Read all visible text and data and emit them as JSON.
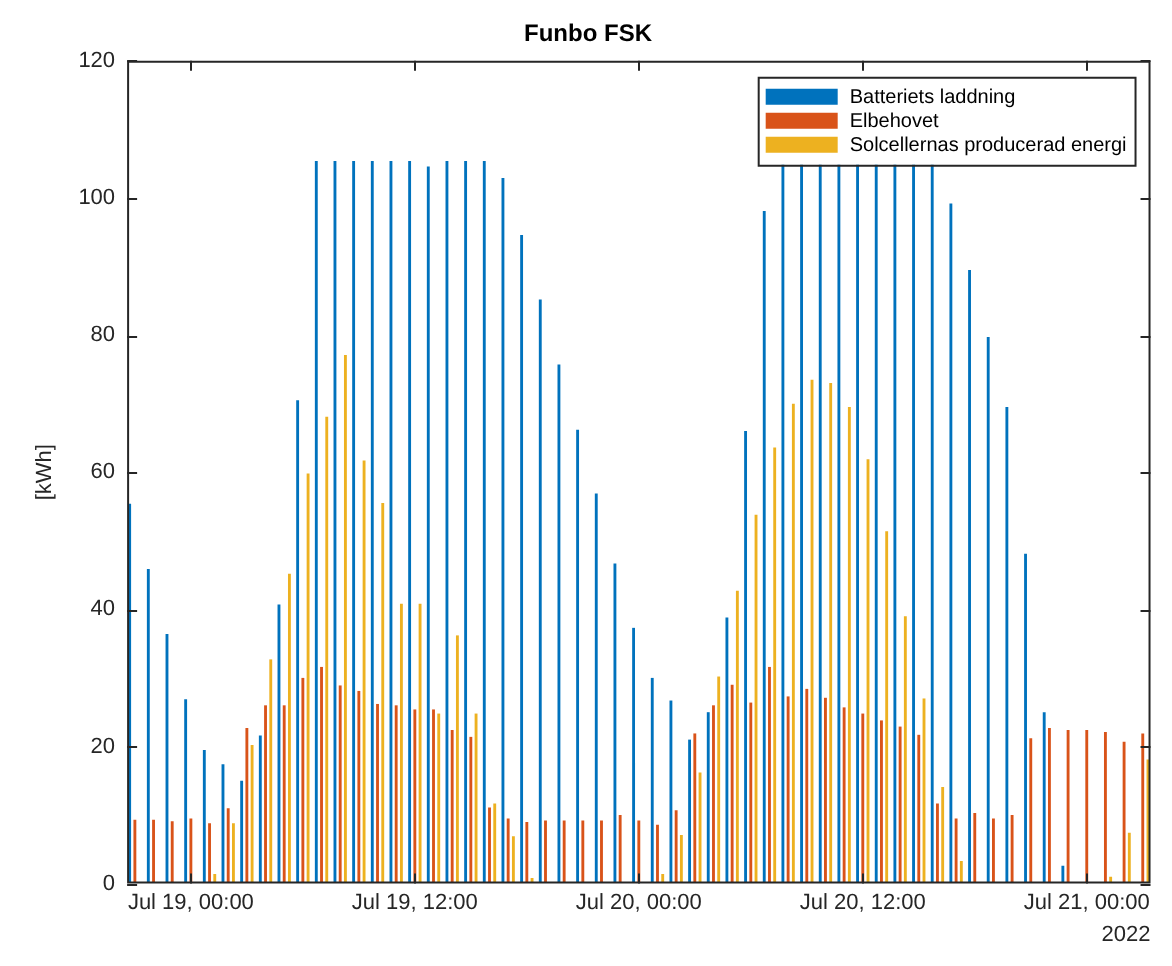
{
  "chart_data": {
    "type": "bar",
    "title": "Funbo FSK",
    "ylabel": "[kWh]",
    "annotations": [
      "2022"
    ],
    "x": [
      "2022-07-18T21:00",
      "2022-07-18T22:00",
      "2022-07-18T23:00",
      "2022-07-19T00:00",
      "2022-07-19T01:00",
      "2022-07-19T02:00",
      "2022-07-19T03:00",
      "2022-07-19T04:00",
      "2022-07-19T05:00",
      "2022-07-19T06:00",
      "2022-07-19T07:00",
      "2022-07-19T08:00",
      "2022-07-19T09:00",
      "2022-07-19T10:00",
      "2022-07-19T11:00",
      "2022-07-19T12:00",
      "2022-07-19T13:00",
      "2022-07-19T14:00",
      "2022-07-19T15:00",
      "2022-07-19T16:00",
      "2022-07-19T17:00",
      "2022-07-19T18:00",
      "2022-07-19T19:00",
      "2022-07-19T20:00",
      "2022-07-19T21:00",
      "2022-07-19T22:00",
      "2022-07-19T23:00",
      "2022-07-20T00:00",
      "2022-07-20T01:00",
      "2022-07-20T02:00",
      "2022-07-20T03:00",
      "2022-07-20T04:00",
      "2022-07-20T05:00",
      "2022-07-20T06:00",
      "2022-07-20T07:00",
      "2022-07-20T08:00",
      "2022-07-20T09:00",
      "2022-07-20T10:00",
      "2022-07-20T11:00",
      "2022-07-20T12:00",
      "2022-07-20T13:00",
      "2022-07-20T14:00",
      "2022-07-20T15:00",
      "2022-07-20T16:00",
      "2022-07-20T17:00",
      "2022-07-20T18:00",
      "2022-07-20T19:00",
      "2022-07-20T20:00",
      "2022-07-20T21:00",
      "2022-07-20T22:00",
      "2022-07-20T23:00",
      "2022-07-21T00:00",
      "2022-07-21T01:00",
      "2022-07-21T02:00",
      "2022-07-21T03:00"
    ],
    "series": [
      {
        "name": "Batteriets laddning",
        "color": "#0072bd",
        "values": [
          55.4,
          45.9,
          36.4,
          26.9,
          19.5,
          17.4,
          15,
          21.6,
          40.7,
          70.5,
          105.4,
          105.4,
          105.4,
          105.4,
          105.4,
          105.4,
          104.6,
          105.4,
          105.4,
          105.4,
          102.9,
          94.6,
          85.2,
          75.7,
          66.2,
          56.9,
          46.7,
          37.3,
          30,
          26.7,
          21,
          25,
          38.8,
          66,
          98.1,
          105.4,
          105.4,
          105.4,
          105.4,
          105.4,
          105.4,
          105.4,
          105.4,
          105.4,
          99.2,
          89.5,
          79.7,
          69.5,
          48.1,
          25,
          2.6,
          0,
          0,
          0,
          0
        ]
      },
      {
        "name": "Elbehovet",
        "color": "#d95319",
        "values": [
          9.3,
          9.3,
          9.1,
          9.5,
          8.8,
          11,
          22.7,
          26,
          26,
          30,
          31.6,
          28.9,
          28.1,
          26.2,
          26,
          25.4,
          25.4,
          22.4,
          21.4,
          11.1,
          9.5,
          9.0,
          9.2,
          9.2,
          9.2,
          9.2,
          10,
          9.2,
          8.6,
          10.7,
          21.9,
          26,
          29,
          26.4,
          31.6,
          27.3,
          28.4,
          27.1,
          25.7,
          24.8,
          23.8,
          22.9,
          21.7,
          11.7,
          9.5,
          10.3,
          9.5,
          10,
          21.2,
          22.7,
          22.4,
          22.4,
          22.1,
          20.7,
          21.9
        ]
      },
      {
        "name": "Solcellernas producerad energi",
        "color": "#edb120",
        "values": [
          0,
          0,
          0,
          0,
          1.4,
          8.8,
          20.2,
          32.7,
          45.2,
          59.8,
          68.1,
          77.1,
          61.7,
          55.5,
          40.8,
          40.8,
          24.8,
          36.2,
          24.8,
          11.7,
          6.9,
          0.8,
          0,
          0,
          0,
          0,
          0,
          0,
          1.4,
          7.1,
          16.2,
          30.2,
          42.7,
          53.8,
          63.6,
          70,
          73.5,
          73,
          69.5,
          61.9,
          51.4,
          39.0,
          27,
          14.1,
          3.3,
          0,
          0,
          0,
          0,
          0,
          0,
          0,
          1,
          7.4,
          18.1
        ]
      }
    ],
    "xlim": [
      "2022-07-18T20:35",
      "2022-07-21T03:25"
    ],
    "xticks": [
      {
        "value": "2022-07-19T00:00",
        "label": "Jul 19, 00:00"
      },
      {
        "value": "2022-07-19T12:00",
        "label": "Jul 19, 12:00"
      },
      {
        "value": "2022-07-20T00:00",
        "label": "Jul 20, 00:00"
      },
      {
        "value": "2022-07-20T12:00",
        "label": "Jul 20, 12:00"
      },
      {
        "value": "2022-07-21T00:00",
        "label": "Jul 21, 00:00"
      }
    ],
    "ylim": [
      0,
      120
    ],
    "yticks": [
      0,
      20,
      40,
      60,
      80,
      100,
      120
    ],
    "grid": false,
    "legend": "top right"
  }
}
